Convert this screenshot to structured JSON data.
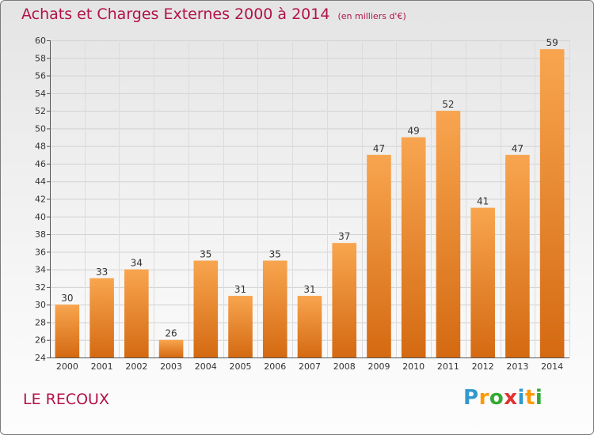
{
  "title": "Achats et Charges Externes 2000 à 2014",
  "subtitle": "(en milliers d'€)",
  "place": "LE RECOUX",
  "logo": {
    "letters": [
      "P",
      "r",
      "o",
      "x",
      "i",
      "t",
      "i"
    ],
    "colors": [
      "#3399cc",
      "#ff9900",
      "#33aa33",
      "#e53030",
      "#3399cc",
      "#ff9900",
      "#33aa33"
    ]
  },
  "colors": {
    "bar_top": "#f8a54f",
    "bar_bottom": "#d46a12",
    "text_accent": "#b2124a"
  },
  "chart_data": {
    "type": "bar",
    "title": "Achats et Charges Externes 2000 à 2014",
    "subtitle": "(en milliers d'€)",
    "categories": [
      "2000",
      "2001",
      "2002",
      "2003",
      "2004",
      "2005",
      "2006",
      "2007",
      "2008",
      "2009",
      "2010",
      "2011",
      "2012",
      "2013",
      "2014"
    ],
    "values": [
      30,
      33,
      34,
      26,
      35,
      31,
      35,
      31,
      37,
      47,
      49,
      52,
      41,
      47,
      59
    ],
    "xlabel": "",
    "ylabel": "",
    "ylim": [
      24,
      60
    ],
    "ytick_step": 2,
    "grid": true,
    "data_labels": true
  }
}
